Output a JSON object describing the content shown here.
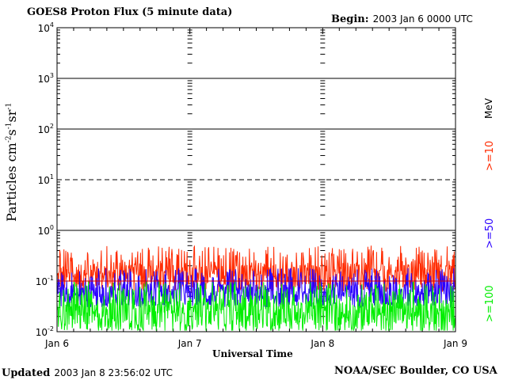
{
  "header": {
    "title": "GOES8 Proton Flux (5 minute data)",
    "begin_label": "Begin:",
    "begin_value": "2003 Jan 6 0000 UTC"
  },
  "footer": {
    "updated_label": "Updated",
    "updated_value": "2003 Jan  8 23:56:02 UTC",
    "credit": "NOAA/SEC Boulder, CO USA"
  },
  "legend": {
    "unit": "MeV",
    "items": [
      {
        "label": ">=10",
        "color": "#ff2a00"
      },
      {
        "label": ">=50",
        "color": "#2a00ff"
      },
      {
        "label": ">=100",
        "color": "#00ee00"
      }
    ]
  },
  "colors": {
    "p10": "#ff2a00",
    "p50": "#2a00ff",
    "p100": "#00ee00",
    "threshold": "#d40000"
  },
  "chart_data": {
    "type": "line",
    "title": "GOES8 Proton Flux (5 minute data)",
    "xlabel": "Universal Time",
    "ylabel": "Particles cm-2s-1sr-1",
    "yscale": "log",
    "ylim": [
      0.01,
      10000
    ],
    "xlim": [
      "2003-01-06T00:00",
      "2003-01-09T00:00"
    ],
    "x_tick_labels": [
      "Jan 6",
      "Jan 7",
      "Jan 8",
      "Jan 9"
    ],
    "y_tick_labels": [
      {
        "base": "10",
        "exp": "-2"
      },
      {
        "base": "10",
        "exp": "-1"
      },
      {
        "base": "10",
        "exp": "0"
      },
      {
        "base": "10",
        "exp": "1"
      },
      {
        "base": "10",
        "exp": "2"
      },
      {
        "base": "10",
        "exp": "3"
      },
      {
        "base": "10",
        "exp": "4"
      }
    ],
    "threshold": 0.1,
    "grid": true,
    "series": [
      {
        "name": ">=10 MeV",
        "color": "#ff2a00",
        "typical_range": [
          0.06,
          0.5
        ]
      },
      {
        "name": ">=50 MeV",
        "color": "#2a00ff",
        "typical_range": [
          0.03,
          0.18
        ]
      },
      {
        "name": ">=100 MeV",
        "color": "#00ee00",
        "typical_range": [
          0.01,
          0.1
        ]
      }
    ]
  }
}
